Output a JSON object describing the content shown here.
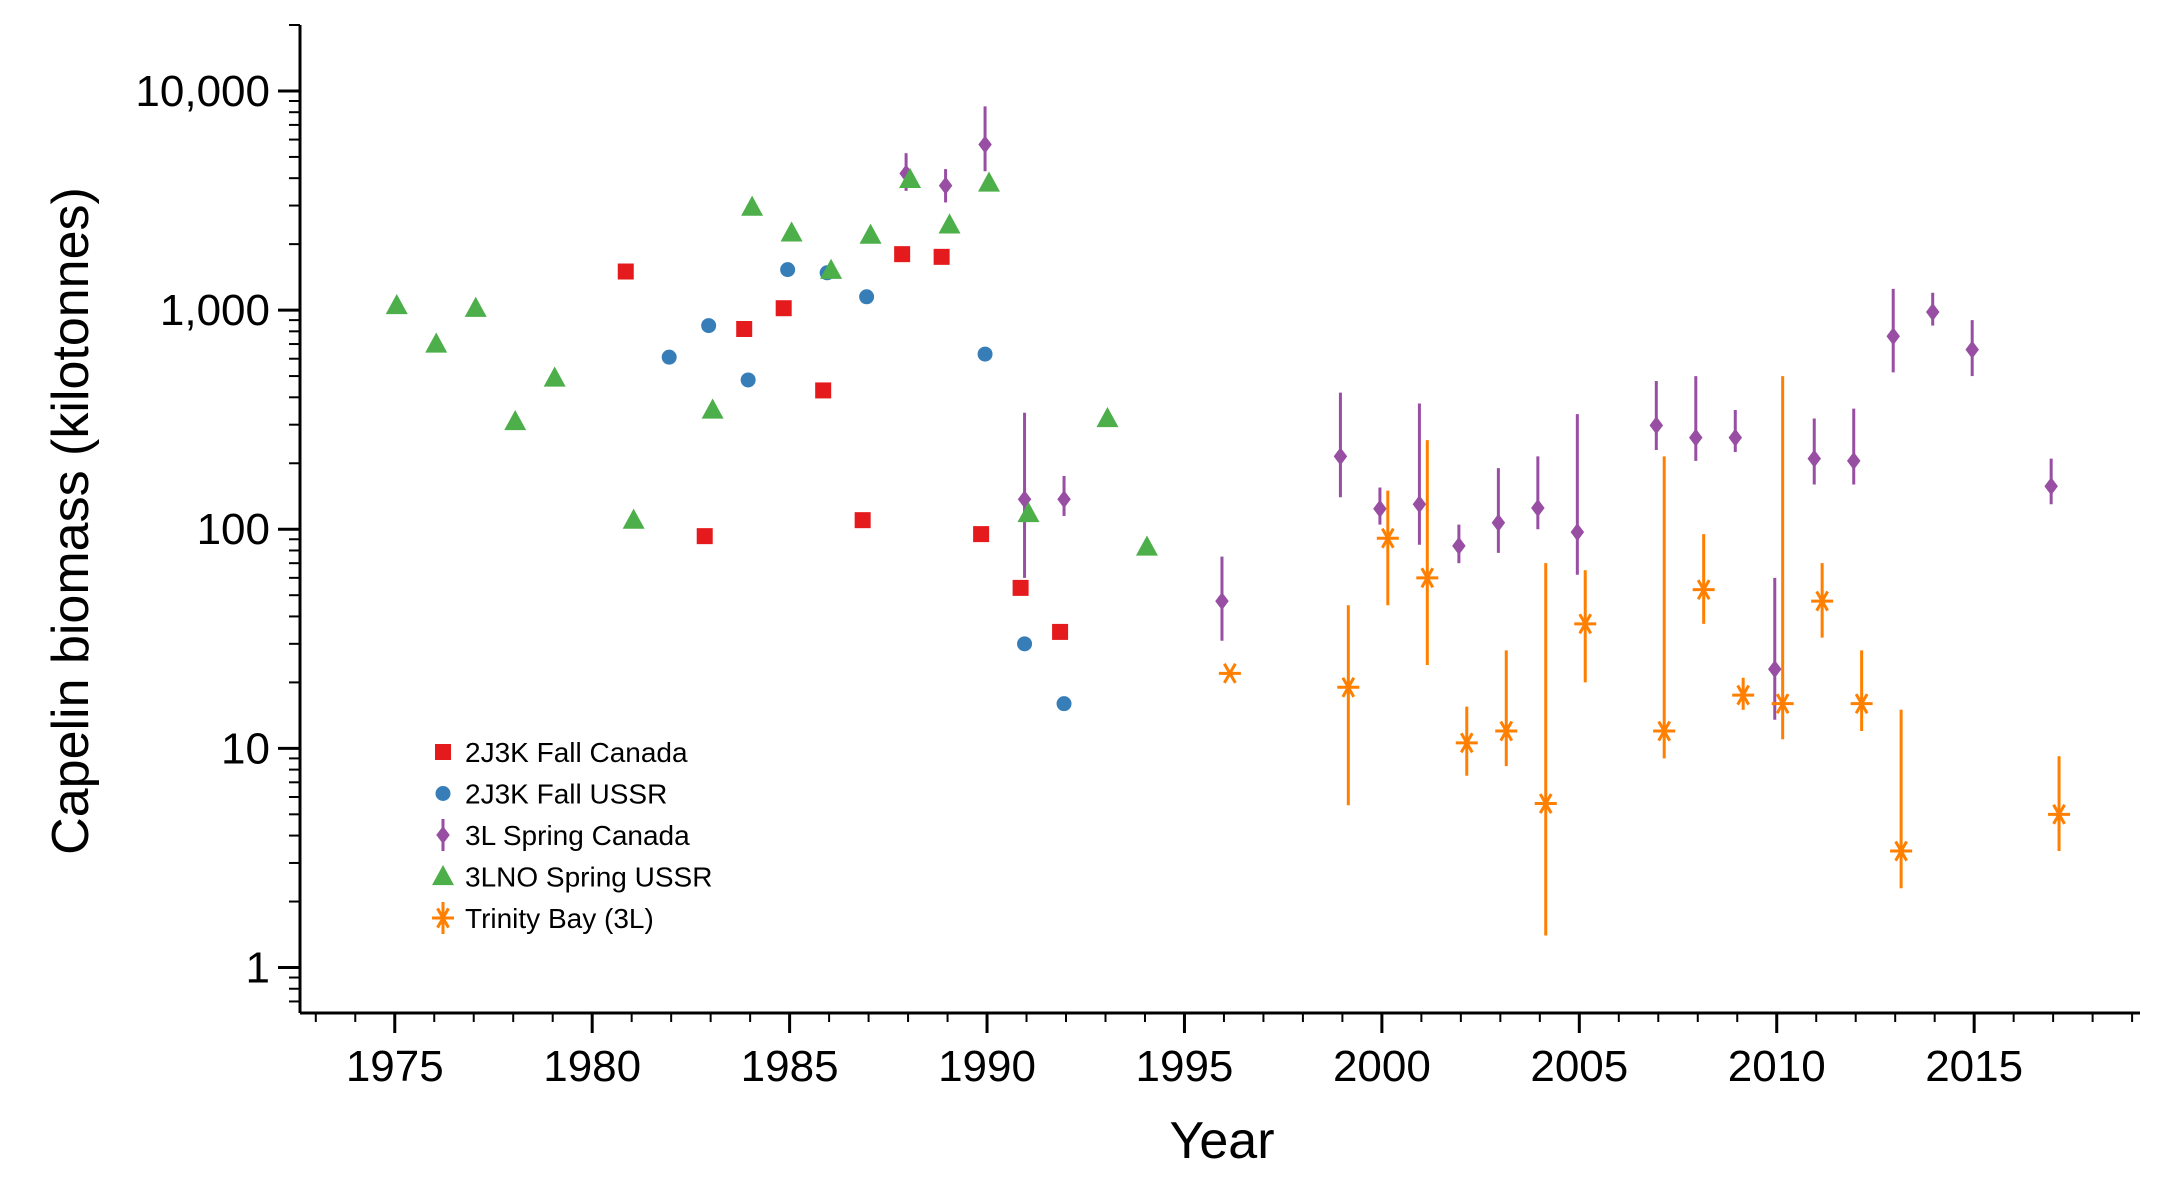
{
  "chart_data": {
    "type": "scatter",
    "xlabel": "Year",
    "ylabel": "Capelin biomass (kilotonnes)",
    "yscale": "log",
    "xlim": [
      1972.6,
      2019.2
    ],
    "ylim": [
      0.62,
      20000
    ],
    "grid": false,
    "legend_position": "bottom-left",
    "x_ticks": [
      1975,
      1980,
      1985,
      1990,
      1995,
      2000,
      2005,
      2010,
      2015
    ],
    "x_tick_labels": [
      "1975",
      "1980",
      "1985",
      "1990",
      "1995",
      "2000",
      "2005",
      "2010",
      "2015"
    ],
    "y_ticks": [
      1,
      10,
      100,
      1000,
      10000
    ],
    "y_tick_labels": [
      "1",
      "10",
      "100",
      "1,000",
      "10,000"
    ],
    "series": [
      {
        "name": "2J3K Fall Canada",
        "marker": "square",
        "color": "#e41a1c",
        "points": [
          {
            "x": 1981,
            "y": 1500
          },
          {
            "x": 1983,
            "y": 93
          },
          {
            "x": 1984,
            "y": 820
          },
          {
            "x": 1985,
            "y": 1020
          },
          {
            "x": 1986,
            "y": 430
          },
          {
            "x": 1987,
            "y": 110
          },
          {
            "x": 1988,
            "y": 1800
          },
          {
            "x": 1989,
            "y": 1750
          },
          {
            "x": 1990,
            "y": 95
          },
          {
            "x": 1991,
            "y": 54
          },
          {
            "x": 1992,
            "y": 34
          }
        ]
      },
      {
        "name": "2J3K Fall USSR",
        "marker": "circle",
        "color": "#377eb8",
        "points": [
          {
            "x": 1982,
            "y": 610
          },
          {
            "x": 1983,
            "y": 850
          },
          {
            "x": 1984,
            "y": 480
          },
          {
            "x": 1985,
            "y": 1530
          },
          {
            "x": 1986,
            "y": 1480
          },
          {
            "x": 1987,
            "y": 1150
          },
          {
            "x": 1990,
            "y": 630
          },
          {
            "x": 1991,
            "y": 30
          },
          {
            "x": 1992,
            "y": 16
          }
        ]
      },
      {
        "name": "3L Spring Canada",
        "marker": "diamond",
        "color": "#984ea3",
        "points": [
          {
            "x": 1988,
            "y": 4200,
            "lo": 3500,
            "hi": 5200
          },
          {
            "x": 1989,
            "y": 3700,
            "lo": 3100,
            "hi": 4400
          },
          {
            "x": 1990,
            "y": 5700,
            "lo": 4300,
            "hi": 8500
          },
          {
            "x": 1991,
            "y": 137,
            "lo": 60,
            "hi": 340
          },
          {
            "x": 1992,
            "y": 137,
            "lo": 115,
            "hi": 175
          },
          {
            "x": 1996,
            "y": 47,
            "lo": 31,
            "hi": 75
          },
          {
            "x": 1999,
            "y": 215,
            "lo": 140,
            "hi": 420
          },
          {
            "x": 2000,
            "y": 124,
            "lo": 105,
            "hi": 155
          },
          {
            "x": 2001,
            "y": 130,
            "lo": 85,
            "hi": 375
          },
          {
            "x": 2002,
            "y": 84,
            "lo": 70,
            "hi": 105
          },
          {
            "x": 2003,
            "y": 107,
            "lo": 78,
            "hi": 190
          },
          {
            "x": 2004,
            "y": 125,
            "lo": 100,
            "hi": 215
          },
          {
            "x": 2005,
            "y": 97,
            "lo": 62,
            "hi": 335
          },
          {
            "x": 2007,
            "y": 298,
            "lo": 230,
            "hi": 475
          },
          {
            "x": 2008,
            "y": 262,
            "lo": 205,
            "hi": 500
          },
          {
            "x": 2009,
            "y": 262,
            "lo": 225,
            "hi": 350
          },
          {
            "x": 2010,
            "y": 23,
            "lo": 13.5,
            "hi": 60
          },
          {
            "x": 2011,
            "y": 210,
            "lo": 160,
            "hi": 320
          },
          {
            "x": 2012,
            "y": 205,
            "lo": 160,
            "hi": 355
          },
          {
            "x": 2013,
            "y": 760,
            "lo": 520,
            "hi": 1250
          },
          {
            "x": 2014,
            "y": 980,
            "lo": 850,
            "hi": 1200
          },
          {
            "x": 2015,
            "y": 660,
            "lo": 500,
            "hi": 900
          },
          {
            "x": 2017,
            "y": 157,
            "lo": 130,
            "hi": 210
          }
        ]
      },
      {
        "name": "3LNO Spring USSR",
        "marker": "triangle",
        "color": "#4daf4a",
        "points": [
          {
            "x": 1975,
            "y": 1050
          },
          {
            "x": 1976,
            "y": 700
          },
          {
            "x": 1977,
            "y": 1020
          },
          {
            "x": 1978,
            "y": 310
          },
          {
            "x": 1979,
            "y": 490
          },
          {
            "x": 1981,
            "y": 110
          },
          {
            "x": 1983,
            "y": 350
          },
          {
            "x": 1984,
            "y": 2950
          },
          {
            "x": 1985,
            "y": 2250
          },
          {
            "x": 1986,
            "y": 1520
          },
          {
            "x": 1987,
            "y": 2200
          },
          {
            "x": 1988,
            "y": 3950
          },
          {
            "x": 1989,
            "y": 2450
          },
          {
            "x": 1990,
            "y": 3800
          },
          {
            "x": 1991,
            "y": 118
          },
          {
            "x": 1993,
            "y": 320
          },
          {
            "x": 1994,
            "y": 83
          }
        ]
      },
      {
        "name": "Trinity Bay (3L)",
        "marker": "asterisk",
        "color": "#ff7f00",
        "points": [
          {
            "x": 1996,
            "y": 22
          },
          {
            "x": 1999,
            "y": 19,
            "lo": 5.5,
            "hi": 45
          },
          {
            "x": 2000,
            "y": 91,
            "lo": 45,
            "hi": 150
          },
          {
            "x": 2001,
            "y": 60,
            "lo": 24,
            "hi": 255
          },
          {
            "x": 2002,
            "y": 10.6,
            "lo": 7.5,
            "hi": 15.5
          },
          {
            "x": 2003,
            "y": 12,
            "lo": 8.3,
            "hi": 28
          },
          {
            "x": 2004,
            "y": 5.6,
            "lo": 1.4,
            "hi": 70
          },
          {
            "x": 2005,
            "y": 37,
            "lo": 20,
            "hi": 65
          },
          {
            "x": 2007,
            "y": 12,
            "lo": 9,
            "hi": 215
          },
          {
            "x": 2008,
            "y": 53,
            "lo": 37,
            "hi": 95
          },
          {
            "x": 2009,
            "y": 17.5,
            "lo": 15,
            "hi": 21
          },
          {
            "x": 2010,
            "y": 16,
            "lo": 11,
            "hi": 500
          },
          {
            "x": 2011,
            "y": 47,
            "lo": 32,
            "hi": 70
          },
          {
            "x": 2012,
            "y": 16,
            "lo": 12,
            "hi": 28
          },
          {
            "x": 2013,
            "y": 3.4,
            "lo": 2.3,
            "hi": 15
          },
          {
            "x": 2017,
            "y": 5,
            "lo": 3.4,
            "hi": 9.2
          }
        ]
      }
    ]
  }
}
